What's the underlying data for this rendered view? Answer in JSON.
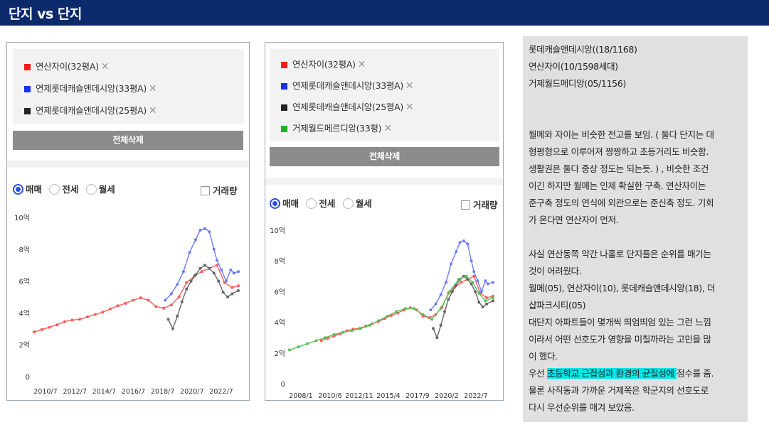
{
  "header": {
    "title": "단지 vs 단지"
  },
  "colors": {
    "header_bg": "#0b2a6b",
    "red": "#ff1a1a",
    "blue": "#1a2ef0",
    "black": "#222222",
    "green": "#22b322"
  },
  "left_panel": {
    "legend": [
      {
        "label": "연산자이(32평A)",
        "color": "#ff1a1a",
        "remove_icon": "close-icon"
      },
      {
        "label": "연제롯데캐슬앤데시앙(33평A)",
        "color": "#1a2ef0",
        "remove_icon": "close-icon"
      },
      {
        "label": "연제롯데캐슬앤데시앙(25평A)",
        "color": "#222222",
        "remove_icon": "close-icon"
      }
    ],
    "remove_glyph": "✕",
    "delete_all_label": "전체삭제",
    "radios": [
      {
        "label": "매매",
        "selected": true
      },
      {
        "label": "전세",
        "selected": false
      },
      {
        "label": "월세",
        "selected": false
      }
    ],
    "volume_label": "거래량",
    "volume_checked": false
  },
  "right_panel": {
    "legend": [
      {
        "label": "연산자이(32평A)",
        "color": "#ff1a1a",
        "remove_icon": "close-icon"
      },
      {
        "label": "연제롯데캐슬앤데시앙(33평A)",
        "color": "#1a2ef0",
        "remove_icon": "close-icon"
      },
      {
        "label": "연제롯데캐슬앤데시앙(25평A)",
        "color": "#222222",
        "remove_icon": "close-icon"
      },
      {
        "label": "거제월드메르디앙(33평)",
        "color": "#22b322",
        "remove_icon": "close-icon"
      }
    ],
    "remove_glyph": "✕",
    "delete_all_label": "전체삭제",
    "radios": [
      {
        "label": "매매",
        "selected": true
      },
      {
        "label": "전세",
        "selected": false
      },
      {
        "label": "월세",
        "selected": false
      }
    ],
    "volume_label": "거래량",
    "volume_checked": false
  },
  "chart_data": [
    {
      "type": "line",
      "title": "",
      "x_tick_labels": [
        "2010/7",
        "2012/7",
        "2014/7",
        "2016/7",
        "2018/7",
        "2020/7",
        "2022/7"
      ],
      "y_tick_labels": [
        "0",
        "2억",
        "4억",
        "6억",
        "8억",
        "10억"
      ],
      "ylim": [
        0,
        10
      ],
      "xlim": [
        2010.5,
        2023.9
      ],
      "y_unit": "억",
      "series": [
        {
          "name": "연산자이(32평A)",
          "color": "#ff5a5a",
          "x": [
            2010.5,
            2011.0,
            2011.5,
            2012.0,
            2012.5,
            2013.0,
            2013.5,
            2014.0,
            2014.5,
            2015.0,
            2015.5,
            2016.0,
            2016.5,
            2017.0,
            2017.5,
            2018.0,
            2018.5,
            2019.0,
            2019.5,
            2020.0,
            2020.5,
            2021.0,
            2021.5,
            2022.0,
            2022.5,
            2023.0,
            2023.5,
            2023.9
          ],
          "values": [
            2.8,
            2.95,
            3.1,
            3.25,
            3.45,
            3.55,
            3.6,
            3.75,
            3.9,
            4.05,
            4.25,
            4.45,
            4.6,
            4.8,
            4.95,
            4.8,
            4.4,
            4.3,
            4.5,
            5.0,
            5.9,
            6.3,
            6.6,
            6.8,
            7.0,
            5.9,
            5.6,
            5.7
          ]
        },
        {
          "name": "연제롯데캐슬앤데시앙(33평A)",
          "color": "#6a7cf5",
          "x": [
            2019.1,
            2019.5,
            2019.9,
            2020.3,
            2020.7,
            2021.1,
            2021.4,
            2021.7,
            2022.0,
            2022.3,
            2022.5,
            2022.8,
            2023.1,
            2023.4,
            2023.6,
            2023.9
          ],
          "values": [
            4.8,
            5.2,
            5.8,
            6.6,
            7.8,
            8.6,
            9.2,
            9.3,
            9.1,
            8.0,
            7.3,
            6.7,
            6.0,
            6.7,
            6.5,
            6.6
          ]
        },
        {
          "name": "연제롯데캐슬앤데시앙(25평A)",
          "color": "#666666",
          "x": [
            2019.3,
            2019.6,
            2019.9,
            2020.2,
            2020.5,
            2020.8,
            2021.1,
            2021.4,
            2021.7,
            2022.0,
            2022.3,
            2022.6,
            2022.9,
            2023.2,
            2023.5,
            2023.9
          ],
          "values": [
            3.6,
            3.0,
            3.8,
            4.7,
            5.5,
            6.0,
            6.4,
            6.8,
            7.0,
            6.8,
            6.5,
            6.0,
            5.3,
            5.0,
            5.2,
            5.4
          ]
        }
      ]
    },
    {
      "type": "line",
      "title": "",
      "x_tick_labels": [
        "2008/1",
        "2010/6",
        "2012/11",
        "2015/4",
        "2017/9",
        "2020/2",
        "2022/7"
      ],
      "y_tick_labels": [
        "0",
        "2억",
        "4억",
        "6억",
        "8억",
        "10억"
      ],
      "ylim": [
        0,
        10
      ],
      "xlim": [
        2008.0,
        2024.0
      ],
      "y_unit": "억",
      "series": [
        {
          "name": "연산자이(32평A)",
          "color": "#ff5a5a",
          "x": [
            2010.5,
            2011.0,
            2011.5,
            2012.0,
            2012.5,
            2013.0,
            2013.5,
            2014.0,
            2014.5,
            2015.0,
            2015.5,
            2016.0,
            2016.5,
            2017.0,
            2017.5,
            2018.0,
            2018.5,
            2019.0,
            2019.5,
            2020.0,
            2020.5,
            2021.0,
            2021.5,
            2022.0,
            2022.5,
            2023.0,
            2023.5,
            2024.0
          ],
          "values": [
            2.8,
            2.95,
            3.1,
            3.25,
            3.45,
            3.55,
            3.6,
            3.75,
            3.9,
            4.05,
            4.25,
            4.45,
            4.6,
            4.8,
            4.95,
            4.8,
            4.4,
            4.3,
            4.5,
            5.0,
            5.9,
            6.3,
            6.6,
            6.8,
            7.0,
            5.9,
            5.6,
            5.7
          ]
        },
        {
          "name": "연제롯데캐슬앤데시앙(33평A)",
          "color": "#6a7cf5",
          "x": [
            2019.1,
            2019.5,
            2019.9,
            2020.3,
            2020.7,
            2021.1,
            2021.4,
            2021.7,
            2022.0,
            2022.3,
            2022.5,
            2022.8,
            2023.1,
            2023.4,
            2023.6,
            2024.0
          ],
          "values": [
            4.8,
            5.2,
            5.8,
            6.6,
            7.8,
            8.6,
            9.2,
            9.3,
            9.1,
            8.0,
            7.3,
            6.7,
            6.0,
            6.7,
            6.5,
            6.6
          ]
        },
        {
          "name": "연제롯데캐슬앤데시앙(25평A)",
          "color": "#666666",
          "x": [
            2019.3,
            2019.6,
            2019.9,
            2020.2,
            2020.5,
            2020.8,
            2021.1,
            2021.4,
            2021.7,
            2022.0,
            2022.3,
            2022.6,
            2022.9,
            2023.2,
            2023.5,
            2024.0
          ],
          "values": [
            3.6,
            3.0,
            3.8,
            4.7,
            5.5,
            6.0,
            6.4,
            6.8,
            7.0,
            6.8,
            6.5,
            6.0,
            5.3,
            5.0,
            5.2,
            5.4
          ]
        },
        {
          "name": "거제월드메르디앙(33평)",
          "color": "#55c055",
          "x": [
            2008.0,
            2008.7,
            2009.4,
            2010.1,
            2010.8,
            2011.5,
            2012.2,
            2012.9,
            2013.6,
            2014.3,
            2015.0,
            2015.7,
            2016.4,
            2017.1,
            2017.8,
            2018.5,
            2019.2,
            2019.9,
            2020.6,
            2021.3,
            2021.9,
            2022.4,
            2022.9,
            2023.4,
            2024.0
          ],
          "values": [
            2.2,
            2.4,
            2.6,
            2.8,
            3.0,
            3.2,
            3.35,
            3.45,
            3.6,
            3.8,
            4.1,
            4.4,
            4.7,
            4.9,
            4.9,
            4.5,
            4.2,
            4.9,
            6.0,
            6.8,
            7.0,
            6.6,
            5.9,
            5.4,
            5.6
          ]
        }
      ]
    }
  ],
  "notes": {
    "lines": [
      {
        "text": "롯데캐슬앤데시앙((18/1168)"
      },
      {
        "text": "연산자이(10/1598세대)"
      },
      {
        "text": "거제월드메디앙(05/1156)"
      },
      {
        "text": ""
      },
      {
        "text": ""
      },
      {
        "text": "월메와 자이는 비슷한 전고를 보임. ( 둘다 단지는 대"
      },
      {
        "text": "형평형으로 이루어져 짱짱하고 초등거리도 비슷함."
      },
      {
        "text": "생활권은 둘다 중상 정도는 되는듯. ) , 비슷한 조건"
      },
      {
        "text": "이긴 하지만 월메는 인제 확실한 구축. 연산자이는"
      },
      {
        "text": "준구축 정도의 연식에 외관으로는 준신축 정도. 기회"
      },
      {
        "text": "가 온다면 연산자이 먼저."
      },
      {
        "text": ""
      },
      {
        "text": "사실 연산동쪽 약간 나홀로 단지들은 순위를 매기는"
      },
      {
        "text": "것이 어려웠다."
      },
      {
        "text": "월메(05), 연산자이(10), 롯데캐슬앤데시앙(18), 더"
      },
      {
        "text": "샵파크시티(05)"
      },
      {
        "text": " 대단지 아파트들이 몇개씩 띄엄띄엄 있는 그런 느낌"
      },
      {
        "text": "이라서 어떤 선호도가 영향을 미칠까라는 고민을 많"
      },
      {
        "text": "이 했다."
      },
      {
        "text": "우선 ",
        "highlight": "초등학교 근접성과 환경의 균질성에 ",
        "after": "점수를 줌."
      },
      {
        "text": "물론 사직동과 가까운 거제쪽은 학군지의  선호도로"
      },
      {
        "text": "다시 우선순위를 매겨 보았음."
      }
    ]
  }
}
